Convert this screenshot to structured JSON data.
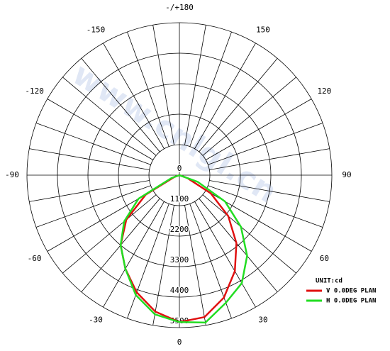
{
  "chart_data": {
    "type": "polar",
    "watermark": "www.cnlgl.cn",
    "unit": "UNIT:cd",
    "x": [
      -90,
      -80,
      -70,
      -60,
      -50,
      -40,
      -30,
      -20,
      -10,
      0,
      10,
      20,
      30,
      40,
      50,
      60,
      70,
      80,
      90
    ],
    "series": [
      {
        "name": "V 0.0DEG PLAN",
        "color": "#e01010",
        "values": [
          0,
          0,
          200,
          1400,
          2500,
          3300,
          3900,
          4500,
          5000,
          5300,
          5200,
          4700,
          4000,
          3200,
          2300,
          1300,
          300,
          0,
          0
        ]
      },
      {
        "name": "H 0.0DEG PLAN",
        "color": "#22dd22",
        "values": [
          0,
          0,
          300,
          1700,
          2600,
          3300,
          3900,
          4600,
          5100,
          5300,
          5400,
          4900,
          4500,
          3800,
          2900,
          1900,
          700,
          0,
          0
        ]
      }
    ],
    "rlim": [
      0,
      5500
    ],
    "rticks": [
      0,
      1100,
      2200,
      3300,
      4400,
      5500
    ],
    "xticks": [
      {
        "value": 180,
        "label": "-/+180"
      },
      150,
      120,
      90,
      60,
      30,
      0,
      -30,
      -60,
      -90,
      -120,
      -150
    ],
    "spoke_step": 10
  }
}
